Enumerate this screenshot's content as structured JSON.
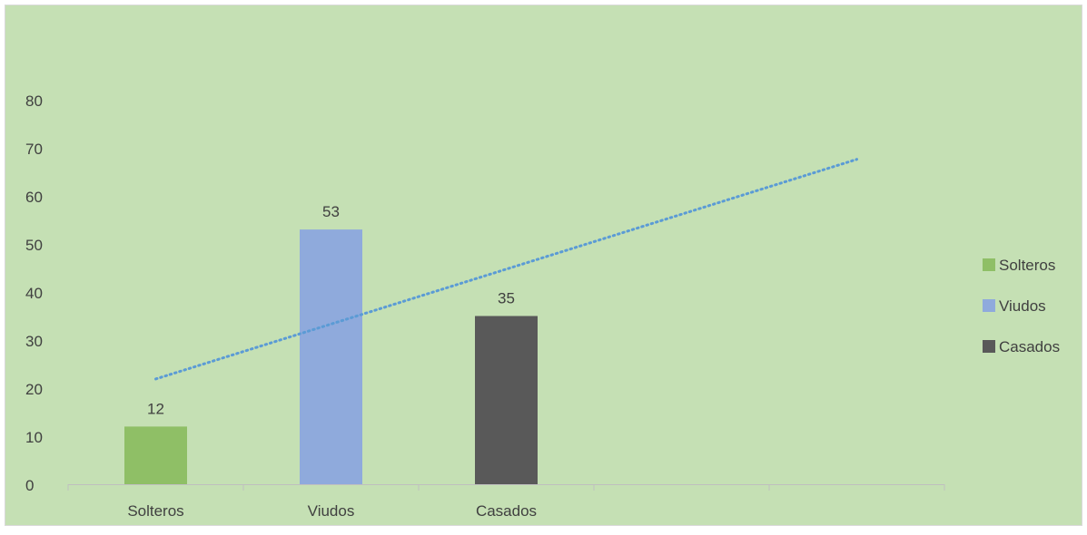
{
  "colors": {
    "background": "#c5e0b4",
    "border": "#d9d9d9",
    "axis": "#bfbfbf",
    "text": "#404040",
    "trendline": "#5b9bd5"
  },
  "chart_data": {
    "type": "bar",
    "title": "",
    "xlabel": "",
    "ylabel": "",
    "categories": [
      "Solteros",
      "Viudos",
      "Casados"
    ],
    "category_slots": 5,
    "ylim": [
      0,
      80
    ],
    "yticks": [
      0,
      10,
      20,
      30,
      40,
      50,
      60,
      70,
      80
    ],
    "grid": false,
    "legend_position": "right",
    "series": [
      {
        "name": "Solteros",
        "color": "#8fbf66",
        "values": [
          12,
          null,
          null
        ]
      },
      {
        "name": "Viudos",
        "color": "#8faadc",
        "values": [
          null,
          53,
          null
        ]
      },
      {
        "name": "Casados",
        "color": "#595959",
        "values": [
          null,
          null,
          35
        ]
      }
    ],
    "data_labels": [
      {
        "category": "Solteros",
        "value": 12,
        "text": "12"
      },
      {
        "category": "Viudos",
        "value": 53,
        "text": "53"
      },
      {
        "category": "Casados",
        "value": 35,
        "text": "35"
      }
    ],
    "trendline": {
      "type": "linear",
      "style": "dotted",
      "color": "#5b9bd5",
      "x": [
        1,
        5
      ],
      "y": [
        21.9,
        67.6
      ]
    }
  }
}
